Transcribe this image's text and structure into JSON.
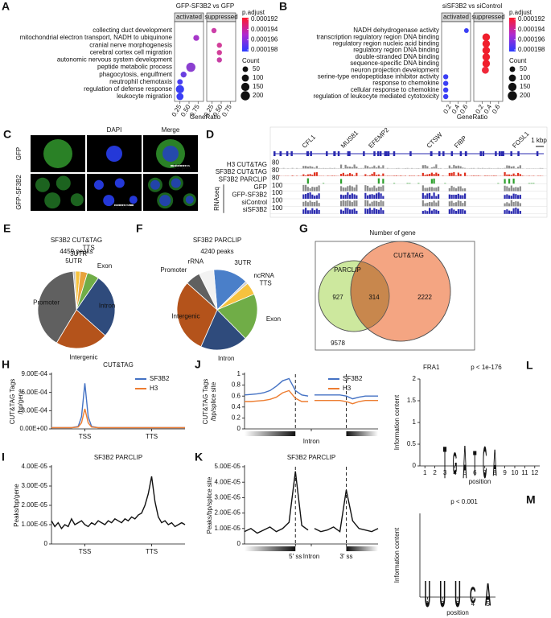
{
  "chart_data": [
    {
      "type": "dot",
      "label": "A",
      "title": "GFP-SF3B2 vs GFP",
      "terms": [
        "collecting duct development",
        "mitochondrial electron transport, NADH to ubiquinone",
        "cranial nerve morphogenesis",
        "cerebral cortex cell migration",
        "autonomic nervous system development",
        "peptide metabolic process",
        "phagocytosis, engulfment",
        "neutrophil chemotaxis",
        "regulation of defense response",
        "leukocyte migration"
      ],
      "series": [
        {
          "name": "activated",
          "values": [
            null,
            0.7,
            null,
            null,
            null,
            0.55,
            0.35,
            0.25,
            0.25,
            0.25
          ],
          "sizes": [
            null,
            60,
            null,
            null,
            null,
            200,
            60,
            50,
            150,
            100
          ],
          "colors": [
            null,
            "#a637c9",
            null,
            null,
            null,
            "#8b3fd0",
            "#6a3fe0",
            "#4a3ff0",
            "#3b3ff5",
            "#3b3ff5"
          ]
        },
        {
          "name": "suppressed",
          "values": [
            0.3,
            null,
            0.45,
            0.45,
            0.45,
            null,
            null,
            null,
            null,
            null
          ],
          "sizes": [
            40,
            null,
            40,
            40,
            40,
            null,
            null,
            null,
            null,
            null
          ],
          "colors": [
            "#cc3fa8",
            null,
            "#d23f9a",
            "#d23f9a",
            "#c73fa5",
            null,
            null,
            null,
            null,
            null
          ]
        }
      ],
      "xlabel": "GeneRatio",
      "xlim": [
        0.1,
        0.9
      ],
      "xticks": [
        0.25,
        {
          "value": 0.5,
          "label": "0.50"
        },
        0.75
      ],
      "color_title": "p.adjust",
      "color_ticks": [
        0.000192,
        0.000194,
        0.000196,
        0.000198
      ],
      "size_title": "Count",
      "size_ticks": [
        50,
        100,
        150,
        200
      ]
    },
    {
      "type": "dot",
      "label": "B",
      "title": "siSF3B2 vs siControl",
      "terms": [
        "NADH dehydrogenase activity",
        "transcription regulatory region DNA binding",
        "regulatory region nucleic acid binding",
        "regulatory region DNA binding",
        "double-stranded DNA binding",
        "sequence-specific DNA binding",
        "neuron projection development",
        "serine-type endopeptidase inhibitor activity",
        "response to chemokine",
        "cellular response to chemokine",
        "regulation of leukocyte mediated cytotoxicity"
      ],
      "series": [
        {
          "name": "activated",
          "values": [
            0.6,
            null,
            null,
            null,
            null,
            null,
            null,
            0.1,
            0.1,
            0.1,
            0.1
          ],
          "sizes": [
            30,
            null,
            null,
            null,
            null,
            null,
            null,
            40,
            40,
            40,
            40
          ],
          "colors": [
            "#3b3ff5",
            null,
            null,
            null,
            null,
            null,
            null,
            "#3b3ff5",
            "#3b3ff5",
            "#3b3ff5",
            "#3b3ff5"
          ]
        },
        {
          "name": "suppressed",
          "values": [
            null,
            0.3,
            0.3,
            0.3,
            0.3,
            0.3,
            0.28,
            null,
            null,
            null,
            null
          ],
          "sizes": [
            null,
            120,
            120,
            120,
            120,
            120,
            100,
            null,
            null,
            null,
            null
          ],
          "colors": [
            null,
            "#f01e2c",
            "#f01e2c",
            "#f01e2c",
            "#f01e2c",
            "#f01e2c",
            "#f0283a",
            null,
            null,
            null,
            null
          ]
        }
      ],
      "xlabel": "GeneRatio",
      "xlim": [
        0,
        0.7
      ],
      "xticks": [
        0.2,
        0.4,
        0.6
      ],
      "color_title": "p.adjust",
      "color_ticks": [
        0.000192,
        0.000194,
        0.000196,
        0.000198
      ],
      "size_title": "Count",
      "size_ticks": [
        50,
        100,
        150,
        200
      ]
    },
    {
      "type": "pie",
      "label": "E",
      "title": "SF3B2 CUT&TAG",
      "subtitle": "4459 peaks",
      "categories": [
        "5UTR",
        "3UTR",
        "TTS",
        "Exon",
        "Intron",
        "Intergenic",
        "Promoter"
      ],
      "values": [
        1,
        2,
        3,
        5,
        27,
        22,
        40
      ],
      "colors": [
        "#bfbfbf",
        "#f6c23e",
        "#e8a33d",
        "#70ad47",
        "#2f4b7c",
        "#b4531b",
        "#606060"
      ]
    },
    {
      "type": "pie",
      "label": "F",
      "title": "SF3B2 PARCLIP",
      "subtitle": "4240 peaks",
      "categories": [
        "3UTR",
        "ncRNA",
        "TTS",
        "Exon",
        "Intron",
        "Intergenic",
        "Promoter",
        "rRNA"
      ],
      "values": [
        14,
        1,
        5,
        19,
        19,
        30,
        6,
        6
      ],
      "colors": [
        "#4a7fc9",
        "#d0d0d0",
        "#f6c23e",
        "#70ad47",
        "#2f4b7c",
        "#b4531b",
        "#606060",
        "#f2f2f2"
      ]
    },
    {
      "type": "venn",
      "label": "G",
      "title": "Number of gene",
      "sets": [
        "PARCLIP",
        "CUT&TAG"
      ],
      "counts": [
        "927",
        "314",
        "2222"
      ],
      "outside": "9578",
      "colors": [
        "#cde89e",
        "#f4a582",
        "#c8874d"
      ]
    },
    {
      "type": "line",
      "label": "H",
      "title": "CUT&TAG",
      "ylabel": [
        "CUT&TAG Tags",
        "/bp/gene"
      ],
      "x": [
        0,
        1,
        2,
        3,
        4,
        4.5,
        5,
        5.5,
        6,
        7,
        8,
        9,
        10,
        11,
        12,
        13,
        14,
        15,
        16,
        17,
        18,
        19,
        20
      ],
      "series": [
        {
          "name": "SF3B2",
          "color": "#4472c4",
          "values": [
            2e-05,
            2e-05,
            2e-05,
            2e-05,
            4e-05,
            0.0002,
            0.00075,
            0.0002,
            4e-05,
            2e-05,
            2e-05,
            2e-05,
            2e-05,
            2e-05,
            2e-05,
            2e-05,
            2e-05,
            2e-05,
            2e-05,
            2e-05,
            2e-05,
            2e-05,
            2e-05
          ]
        },
        {
          "name": "H3",
          "color": "#ed7d31",
          "values": [
            2e-05,
            2e-05,
            2e-05,
            2e-05,
            3e-05,
            0.0001,
            0.00033,
            0.0001,
            3e-05,
            2e-05,
            2e-05,
            2e-05,
            2e-05,
            2e-05,
            2e-05,
            2e-05,
            2e-05,
            2e-05,
            2e-05,
            2e-05,
            2e-05,
            2e-05,
            2e-05
          ]
        }
      ],
      "xlim": [
        0,
        20
      ],
      "xticks": [
        {
          "value": 5,
          "label": "TSS"
        },
        {
          "value": 15,
          "label": "TTS"
        }
      ],
      "ylim": [
        0,
        0.0009
      ],
      "yticks": [
        {
          "value": 0,
          "label": "0.00E+00"
        },
        {
          "value": 0.0003,
          "label": "3.00E-04"
        },
        {
          "value": 0.0006,
          "label": "6.00E-04"
        },
        {
          "value": 0.0009,
          "label": "9.00E-04"
        }
      ]
    },
    {
      "type": "line",
      "label": "I",
      "title": "SF3B2 PARCLIP",
      "ylabel": [
        "Peaks/bp/gene"
      ],
      "x": [
        0,
        1,
        2,
        3,
        4,
        5,
        6,
        7,
        8,
        9,
        10,
        11,
        12,
        13,
        14,
        15,
        16,
        17,
        18,
        19,
        20,
        21,
        22,
        23,
        24,
        25,
        26,
        27,
        28,
        29,
        30,
        31,
        32,
        33,
        34,
        35,
        36,
        37,
        38,
        39,
        40
      ],
      "series": [
        {
          "color": "#111111",
          "values": [
            1.2e-05,
            9e-06,
            1.1e-05,
            8e-06,
            1e-05,
            9e-06,
            1.3e-05,
            1e-05,
            1.1e-05,
            1.2e-05,
            1e-05,
            9e-06,
            1.1e-05,
            1e-05,
            1.2e-05,
            1.1e-05,
            1e-05,
            1.2e-05,
            1.1e-05,
            1.3e-05,
            1.2e-05,
            1.1e-05,
            1.3e-05,
            1.2e-05,
            1.4e-05,
            1.3e-05,
            1.5e-05,
            1.6e-05,
            2e-05,
            2.6e-05,
            3.5e-05,
            2.2e-05,
            1.4e-05,
            1.1e-05,
            1.2e-05,
            1e-05,
            1.1e-05,
            9e-06,
            1e-05,
            1.1e-05,
            1e-05
          ]
        }
      ],
      "xlim": [
        0,
        40
      ],
      "xticks": [
        {
          "value": 10,
          "label": "TSS"
        },
        {
          "value": 30,
          "label": "TTS"
        }
      ],
      "ylim": [
        0,
        4e-05
      ],
      "yticks": [
        0,
        {
          "value": 1e-05,
          "label": "1.00E-05"
        },
        {
          "value": 2e-05,
          "label": "2.00E-05"
        },
        {
          "value": 3e-05,
          "label": "3.00E-05"
        },
        {
          "value": 4e-05,
          "label": "4.00E-05"
        }
      ]
    },
    {
      "type": "line",
      "label": "J",
      "ylabel": [
        "CUT&TAG Tags",
        "/bp/splice site"
      ],
      "x": [
        0,
        1,
        2,
        3,
        4,
        5,
        6,
        7,
        8,
        9,
        10,
        10.5,
        11,
        12,
        13,
        14,
        15,
        16,
        17,
        18,
        19,
        20,
        21
      ],
      "series": [
        {
          "name": "SF3B2",
          "color": "#4472c4",
          "values": [
            0.62,
            0.63,
            0.64,
            0.66,
            0.7,
            0.78,
            0.88,
            0.92,
            0.7,
            0.62,
            0.6,
            null,
            0.62,
            0.62,
            0.62,
            0.62,
            0.62,
            0.6,
            0.55,
            0.58,
            0.6,
            0.6,
            0.6
          ]
        },
        {
          "name": "H3",
          "color": "#ed7d31",
          "values": [
            0.5,
            0.5,
            0.51,
            0.52,
            0.54,
            0.58,
            0.66,
            0.7,
            0.56,
            0.5,
            0.5,
            null,
            0.52,
            0.52,
            0.52,
            0.52,
            0.52,
            0.5,
            0.46,
            0.5,
            0.52,
            0.52,
            0.52
          ]
        }
      ],
      "xlim": [
        0,
        21
      ],
      "xticks": [
        {
          "value": 10.5,
          "label": "Intron"
        }
      ],
      "vlines": [
        8,
        16
      ],
      "ylim": [
        0,
        1
      ],
      "yticks": [
        0,
        0.2,
        0.4,
        0.6,
        0.8,
        1
      ]
    },
    {
      "type": "line",
      "label": "K",
      "title": "SF3B2 PARCLIP",
      "ylabel": [
        "Peaks/bp/splice site"
      ],
      "x": [
        0,
        1,
        2,
        3,
        4,
        5,
        6,
        7,
        8,
        9,
        10,
        10.5,
        11,
        12,
        13,
        14,
        15,
        16,
        17,
        18,
        19,
        20,
        21
      ],
      "series": [
        {
          "color": "#111111",
          "values": [
            8e-06,
            1e-05,
            7e-06,
            9e-06,
            1.1e-05,
            8e-06,
            1e-05,
            1.4e-05,
            4.7e-05,
            1.2e-05,
            9e-06,
            null,
            1e-05,
            8e-06,
            9e-06,
            1.1e-05,
            8e-06,
            3.5e-05,
            1.5e-05,
            1e-05,
            9e-06,
            8e-06,
            1e-05
          ]
        }
      ],
      "xlim": [
        0,
        21
      ],
      "xticks": [
        {
          "value": 8,
          "label": "5′ ss"
        },
        {
          "value": 10.5,
          "label": "Intron"
        },
        {
          "value": 16,
          "label": "3′ ss"
        }
      ],
      "vlines": [
        8,
        16
      ],
      "ylim": [
        0,
        5e-05
      ],
      "yticks": [
        0,
        {
          "value": 1e-05,
          "label": "1.00E-05"
        },
        {
          "value": 2e-05,
          "label": "2.00E-05"
        },
        {
          "value": 3e-05,
          "label": "3.00E-05"
        },
        {
          "value": 4e-05,
          "label": "4.00E-05"
        },
        {
          "value": 5e-05,
          "label": "5.00E-05"
        }
      ]
    },
    {
      "type": "logo",
      "label": "L",
      "title": "FRA1",
      "subtitle": "p < 1e-176",
      "ylabel": "Information content",
      "xlabel": "position",
      "positions": [
        3,
        4,
        5,
        6,
        7,
        8
      ],
      "letters": [
        "T",
        "G",
        "A",
        "T",
        "C",
        "A"
      ],
      "heights": [
        1.9,
        1.3,
        1.95,
        1.5,
        1.9,
        1.6
      ],
      "xlim": [
        0.5,
        12.5
      ],
      "xticks": [
        1,
        2,
        3,
        4,
        5,
        6,
        7,
        8,
        9,
        10,
        11,
        12
      ],
      "ylim": [
        0,
        2
      ],
      "yticks": [
        0,
        0.5,
        1,
        1.5,
        2
      ],
      "letter_colors": {
        "A": "#2e9e44",
        "C": "#2a5db0",
        "G": "#f2a900",
        "T": "#d62728",
        "U": "#d62728"
      }
    },
    {
      "type": "logo",
      "label": "M",
      "subtitle": "p < 0.001",
      "ylabel": "Information content",
      "xlabel": "position",
      "positions": [
        1,
        2,
        3,
        4,
        5
      ],
      "letters": [
        "U",
        "U",
        "U",
        "C",
        "A"
      ],
      "heights": [
        1.6,
        1.6,
        1.6,
        1.0,
        1.4
      ],
      "xlim": [
        0.5,
        5.5
      ],
      "xticks": [
        1,
        2,
        3,
        4,
        5
      ],
      "ylim": [
        0,
        2
      ],
      "letter_colors": {
        "A": "#2e9e44",
        "C": "#2a5db0",
        "G": "#f2a900",
        "T": "#d62728",
        "U": "#d62728"
      }
    }
  ],
  "microscopy": {
    "label": "C",
    "columns": [
      "DAPI",
      "Merge"
    ],
    "rows": [
      "GFP",
      "GFP-SF3B2"
    ],
    "scale_bars": [
      "10 μm",
      "10 μm"
    ]
  },
  "genome_browser": {
    "label": "D",
    "genes": [
      "CFL1",
      "MUS81",
      "EFEMP2",
      "CTSW",
      "FIBP",
      "FOSL1"
    ],
    "scale": "1 kbp",
    "group": "RNAseq",
    "tracks": [
      {
        "name": "H3 CUT&TAG",
        "range": 80,
        "color": "#8c8c8c"
      },
      {
        "name": "SF3B2 CUT&TAG",
        "range": 80,
        "color": "#e0301e"
      },
      {
        "name": "SF3B2 PARCLIP",
        "range": 80,
        "color": "#2ca02c"
      },
      {
        "name": "GFP",
        "range": 100,
        "color": "#8c8c8c"
      },
      {
        "name": "GFP-SF3B2",
        "range": 100,
        "color": "#2b2bb0"
      },
      {
        "name": "siControl",
        "range": 100,
        "color": "#8c8c8c"
      },
      {
        "name": "siSF3B2",
        "range": 100,
        "color": "#2b2bb0"
      }
    ]
  }
}
